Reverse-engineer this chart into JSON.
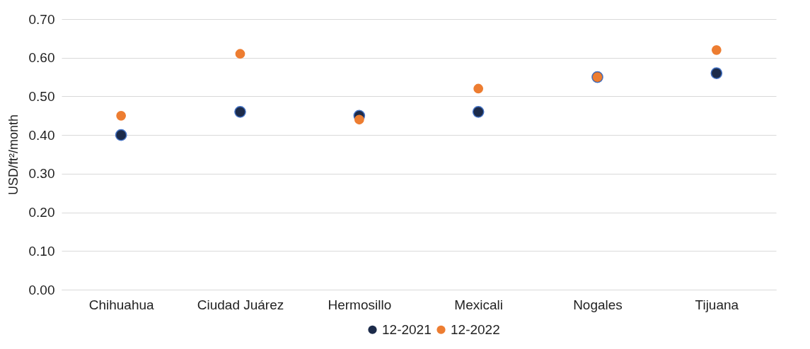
{
  "chart_data": {
    "type": "scatter",
    "ylabel": "USD/ft²/month",
    "categories": [
      "Chihuahua",
      "Ciudad Juárez",
      "Hermosillo",
      "Mexicali",
      "Nogales",
      "Tijuana"
    ],
    "series": [
      {
        "name": "12-2021",
        "color": "#1c2b4a",
        "values": [
          0.4,
          0.46,
          0.45,
          0.46,
          0.55,
          0.56
        ]
      },
      {
        "name": "12-2022",
        "color": "#ed7d31",
        "values": [
          0.45,
          0.61,
          0.44,
          0.52,
          0.55,
          0.62
        ]
      }
    ],
    "ylim": [
      0,
      0.7
    ],
    "yticks": [
      {
        "value": 0,
        "label": "0.00"
      },
      {
        "value": 0.1,
        "label": "0.10"
      },
      {
        "value": 0.2,
        "label": "0.20"
      },
      {
        "value": 0.3,
        "label": "0.30"
      },
      {
        "value": 0.4,
        "label": "0.40"
      },
      {
        "value": 0.5,
        "label": "0.50"
      },
      {
        "value": 0.6,
        "label": "0.60"
      },
      {
        "value": 0.7,
        "label": "0.70"
      }
    ],
    "grid": "y",
    "legend": "bottom",
    "marker": "circle"
  }
}
